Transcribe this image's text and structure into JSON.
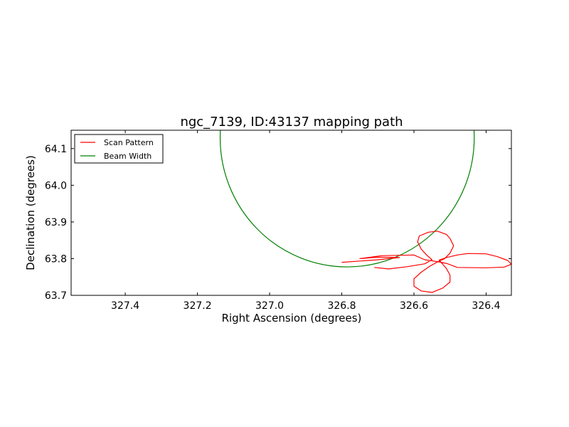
{
  "chart_data": {
    "type": "line",
    "title": "ngc_7139, ID:43137 mapping path",
    "xlabel": "Right Ascension (degrees)",
    "ylabel": "Declination (degrees)",
    "xlim": [
      327.55,
      326.33
    ],
    "ylim": [
      63.7,
      64.15
    ],
    "x_inverted": true,
    "xticks": [
      327.4,
      327.2,
      327.0,
      326.8,
      326.6,
      326.4
    ],
    "xtick_labels": [
      "327.4",
      "327.2",
      "327.0",
      "326.8",
      "326.6",
      "326.4"
    ],
    "yticks": [
      63.7,
      63.8,
      63.9,
      64.0,
      64.1
    ],
    "ytick_labels": [
      "63.7",
      "63.8",
      "63.9",
      "64.0",
      "64.1"
    ],
    "grid": false,
    "legend_position": "top-left",
    "series": [
      {
        "name": "Scan Pattern",
        "color": "#ff0000",
        "points": [
          [
            326.8,
            63.79
          ],
          [
            326.7,
            63.797
          ],
          [
            326.64,
            63.803
          ],
          [
            326.7,
            63.804
          ],
          [
            326.75,
            63.8
          ],
          [
            326.69,
            63.808
          ],
          [
            326.6,
            63.81
          ],
          [
            326.57,
            63.797
          ],
          [
            326.55,
            63.794
          ],
          [
            326.53,
            63.791
          ],
          [
            326.51,
            63.787
          ],
          [
            326.49,
            63.78
          ],
          [
            326.48,
            63.776
          ],
          [
            326.4,
            63.775
          ],
          [
            326.35,
            63.777
          ],
          [
            326.33,
            63.785
          ],
          [
            326.34,
            63.795
          ],
          [
            326.37,
            63.806
          ],
          [
            326.4,
            63.813
          ],
          [
            326.45,
            63.814
          ],
          [
            326.48,
            63.81
          ],
          [
            326.51,
            63.803
          ],
          [
            326.53,
            63.796
          ],
          [
            326.525,
            63.79
          ],
          [
            326.51,
            63.773
          ],
          [
            326.5,
            63.755
          ],
          [
            326.5,
            63.736
          ],
          [
            326.52,
            63.72
          ],
          [
            326.55,
            63.708
          ],
          [
            326.58,
            63.712
          ],
          [
            326.6,
            63.725
          ],
          [
            326.6,
            63.745
          ],
          [
            326.58,
            63.763
          ],
          [
            326.555,
            63.78
          ],
          [
            326.535,
            63.791
          ],
          [
            326.515,
            63.8
          ],
          [
            326.5,
            63.815
          ],
          [
            326.49,
            63.835
          ],
          [
            326.5,
            63.855
          ],
          [
            326.51,
            63.866
          ],
          [
            326.535,
            63.875
          ],
          [
            326.56,
            63.872
          ],
          [
            326.585,
            63.862
          ],
          [
            326.59,
            63.846
          ],
          [
            326.58,
            63.826
          ],
          [
            326.565,
            63.81
          ],
          [
            326.55,
            63.797
          ],
          [
            326.57,
            63.786
          ],
          [
            326.62,
            63.778
          ],
          [
            326.67,
            63.772
          ],
          [
            326.71,
            63.776
          ]
        ]
      },
      {
        "name": "Beam Width",
        "color": "#008000",
        "center": [
          326.785,
          64.1295
        ],
        "radius_deg": 0.352,
        "note": ""
      }
    ]
  }
}
